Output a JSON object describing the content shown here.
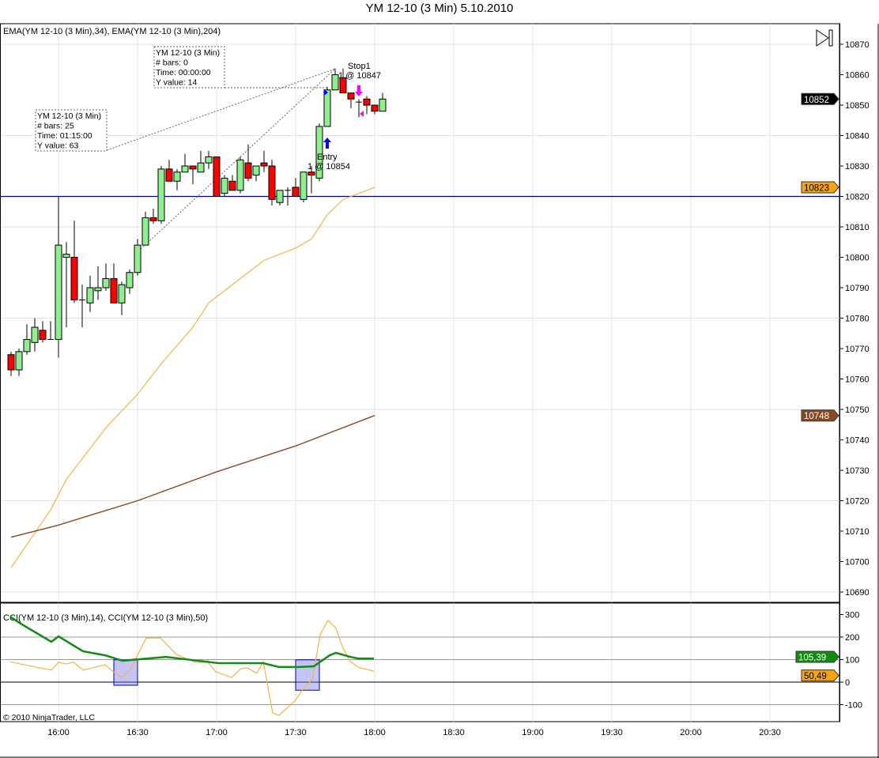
{
  "window": {
    "title": "YM 12-10 (3 Min)  5.10.2010"
  },
  "price_panel": {
    "legend": "EMA(YM 12-10 (3 Min),34), EMA(YM 12-10 (3 Min),204)",
    "go_to_end_icon": "skip-to-end-icon",
    "badges": [
      {
        "value": "10852",
        "price": 10852,
        "color": "#000000",
        "text_color": "#ffffff"
      },
      {
        "value": "10823",
        "price": 10823,
        "color": "#f5a30f",
        "text_color": "#000000"
      },
      {
        "value": "10748",
        "price": 10748,
        "color": "#8b4a1e",
        "text_color": "#ffffff"
      }
    ],
    "horizontal_line": {
      "price": 10820,
      "color": "#00008b"
    },
    "tooltips": [
      {
        "lines": [
          "YM 12-10 (3 Min)",
          "# bars:   0",
          "Time:     00:00:00",
          "Y value: 14"
        ]
      },
      {
        "lines": [
          "YM 12-10 (3 Min)",
          "# bars:   25",
          "Time:     01:15:00",
          "Y value: 63"
        ]
      }
    ],
    "executions": {
      "entry": {
        "label": "Entry",
        "detail": "1 @ 10854"
      },
      "stop": {
        "label": "Stop1",
        "detail": "1 @ 10847"
      }
    }
  },
  "cci_panel": {
    "legend": "CCI(YM 12-10 (3 Min),14), CCI(YM 12-10 (3 Min),50)",
    "badges": [
      {
        "value": "105,39",
        "level": 105.39,
        "color": "#138a13",
        "text_color": "#ffffff"
      },
      {
        "value": "50,49",
        "level": 50.49,
        "color": "#f5a30f",
        "text_color": "#000000"
      }
    ],
    "copyright": "© 2010 NinjaTrader, LLC"
  },
  "chart_data": {
    "type": "candlestick",
    "title": "YM 12-10 (3 Min)  5.10.2010",
    "bar_start": "15:42",
    "interval_min": 3,
    "ylim": [
      10685,
      10875
    ],
    "yticks": [
      10690,
      10700,
      10710,
      10720,
      10730,
      10740,
      10750,
      10760,
      10770,
      10780,
      10790,
      10800,
      10810,
      10820,
      10830,
      10840,
      10850,
      10860,
      10870
    ],
    "xticks": [
      "16:00",
      "16:30",
      "17:00",
      "17:30",
      "18:00",
      "18:30",
      "19:00",
      "19:30",
      "20:00",
      "20:30"
    ],
    "ohlc": [
      [
        10768,
        10769,
        10761,
        10763
      ],
      [
        10763,
        10770,
        10761,
        10769
      ],
      [
        10769,
        10778,
        10768,
        10773
      ],
      [
        10772,
        10780,
        10769,
        10777
      ],
      [
        10776,
        10779,
        10772,
        10773
      ],
      [
        10773,
        10779,
        10773,
        10773
      ],
      [
        10773,
        10820,
        10767,
        10804
      ],
      [
        10800,
        10805,
        10777,
        10801
      ],
      [
        10800,
        10812,
        10785,
        10786
      ],
      [
        10786,
        10791,
        10777,
        10786
      ],
      [
        10785,
        10794,
        10782,
        10790
      ],
      [
        10789,
        10797,
        10786,
        10790
      ],
      [
        10790,
        10798,
        10789,
        10793
      ],
      [
        10793,
        10798,
        10785,
        10785
      ],
      [
        10785,
        10792,
        10781,
        10791
      ],
      [
        10790,
        10796,
        10788,
        10795
      ],
      [
        10795,
        10806,
        10794,
        10804
      ],
      [
        10804,
        10815,
        10804,
        10813
      ],
      [
        10813,
        10816,
        10811,
        10812
      ],
      [
        10812,
        10830,
        10811,
        10829
      ],
      [
        10829,
        10832,
        10825,
        10825
      ],
      [
        10825,
        10829,
        10822,
        10828
      ],
      [
        10828,
        10834,
        10828,
        10830
      ],
      [
        10830,
        10830,
        10824,
        10829
      ],
      [
        10828,
        10835,
        10828,
        10831
      ],
      [
        10831,
        10835,
        10829,
        10833
      ],
      [
        10833,
        10833,
        10820,
        10820
      ],
      [
        10821,
        10827,
        10820,
        10826
      ],
      [
        10825,
        10827,
        10822,
        10822
      ],
      [
        10822,
        10833,
        10821,
        10832
      ],
      [
        10831,
        10837,
        10825,
        10826
      ],
      [
        10827,
        10830,
        10825,
        10830
      ],
      [
        10831,
        10835,
        10828,
        10830
      ],
      [
        10830,
        10832,
        10817,
        10819
      ],
      [
        10818,
        10822,
        10817,
        10822
      ],
      [
        10822,
        10823,
        10817,
        10822
      ],
      [
        10823,
        10826,
        10820,
        10820
      ],
      [
        10819,
        10828,
        10818,
        10828
      ],
      [
        10828,
        10830,
        10821,
        10827
      ],
      [
        10826,
        10844,
        10825,
        10843
      ],
      [
        10843,
        10856,
        10843,
        10855
      ],
      [
        10855,
        10862,
        10855,
        10860
      ],
      [
        10859,
        10862,
        10854,
        10854
      ],
      [
        10854,
        10854,
        10849,
        10852
      ],
      [
        10851,
        10852,
        10846,
        10851
      ],
      [
        10852,
        10853,
        10847,
        10850
      ],
      [
        10850,
        10850,
        10847,
        10848
      ],
      [
        10848,
        10854,
        10848,
        10852
      ]
    ],
    "series": [
      {
        "name": "EMA(34)",
        "color": "#f5b342",
        "points": [
          [
            0,
            10698
          ],
          [
            5,
            10717
          ],
          [
            7,
            10727
          ],
          [
            12,
            10744
          ],
          [
            16,
            10755
          ],
          [
            19,
            10765
          ],
          [
            23,
            10777
          ],
          [
            25,
            10785
          ],
          [
            28,
            10791
          ],
          [
            32,
            10799
          ],
          [
            36,
            10803
          ],
          [
            38,
            10806
          ],
          [
            40,
            10814
          ],
          [
            42,
            10819
          ],
          [
            46,
            10823
          ]
        ]
      },
      {
        "name": "EMA(204)",
        "color": "#8b4a1e",
        "points": [
          [
            0,
            10708
          ],
          [
            6,
            10712
          ],
          [
            16,
            10720
          ],
          [
            26,
            10729.5
          ],
          [
            36,
            10738
          ],
          [
            46,
            10748
          ]
        ]
      },
      {
        "name": "CCI(14)",
        "color": "#f5b342",
        "points": [
          [
            -0.1,
            91
          ],
          [
            1.1,
            81
          ],
          [
            5.1,
            53
          ],
          [
            6,
            88
          ],
          [
            6.9,
            81
          ],
          [
            7.9,
            88
          ],
          [
            9.1,
            53
          ],
          [
            11.9,
            77
          ],
          [
            12.9,
            46
          ],
          [
            14.1,
            21
          ],
          [
            15.1,
            56
          ],
          [
            17.1,
            196
          ],
          [
            18.9,
            196
          ],
          [
            20.9,
            123
          ],
          [
            23.3,
            88
          ],
          [
            24.9,
            88
          ],
          [
            25.9,
            46
          ],
          [
            27.9,
            21
          ],
          [
            29.1,
            60
          ],
          [
            29.9,
            63
          ],
          [
            31.1,
            39
          ],
          [
            31.9,
            91
          ],
          [
            33.1,
            -137
          ],
          [
            33.9,
            -147
          ],
          [
            35.9,
            -84
          ],
          [
            36.9,
            -32
          ],
          [
            38.1,
            11
          ],
          [
            39.1,
            211
          ],
          [
            40.1,
            274
          ],
          [
            41.1,
            239
          ],
          [
            41.9,
            158
          ],
          [
            42.9,
            91
          ],
          [
            44.1,
            63
          ],
          [
            45.1,
            56
          ],
          [
            45.9,
            49
          ]
        ]
      },
      {
        "name": "CCI(50)",
        "color": "#138a13",
        "points": [
          [
            -0.1,
            290
          ],
          [
            1.1,
            262
          ],
          [
            5.1,
            179
          ],
          [
            6,
            203
          ],
          [
            9.1,
            137
          ],
          [
            11.9,
            119
          ],
          [
            14.1,
            95
          ],
          [
            19.6,
            112
          ],
          [
            22.9,
            98
          ],
          [
            26.3,
            84
          ],
          [
            31.9,
            84
          ],
          [
            33.9,
            67
          ],
          [
            36.3,
            67
          ],
          [
            38.3,
            70
          ],
          [
            40.3,
            119
          ],
          [
            41.1,
            130
          ],
          [
            42.9,
            112
          ],
          [
            43.9,
            105
          ],
          [
            45.9,
            105
          ]
        ]
      }
    ],
    "cci_ylim": [
      -155,
      355
    ],
    "cci_yticks": [
      300,
      200,
      100,
      0,
      -100
    ],
    "cci_highlight_boxes": [
      {
        "from_bar": 13,
        "to_bar": 16,
        "top": 99,
        "bottom": -14
      },
      {
        "from_bar": 36,
        "to_bar": 39,
        "top": 99,
        "bottom": -36
      }
    ]
  }
}
